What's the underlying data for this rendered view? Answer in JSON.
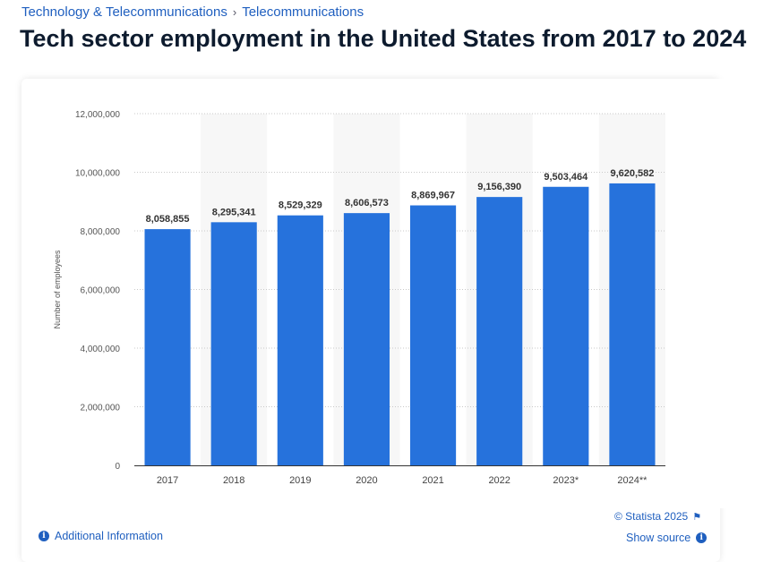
{
  "breadcrumb": {
    "items": [
      "Technology & Telecommunications",
      "Telecommunications"
    ],
    "separator": "›"
  },
  "page_title": "Tech sector employment in the United States from 2017 to 2024",
  "footer": {
    "additional_info": "Additional Information",
    "credit": "© Statista 2025",
    "show_source": "Show source"
  },
  "icons": {
    "info": "info-icon",
    "flag": "flag-icon"
  },
  "colors": {
    "bar": "#2672dc",
    "link": "#1f5fbf",
    "title": "#0d1b2e",
    "band": "#f7f7f7"
  },
  "chart_data": {
    "type": "bar",
    "categories": [
      "2017",
      "2018",
      "2019",
      "2020",
      "2021",
      "2022",
      "2023*",
      "2024**"
    ],
    "values": [
      8058855,
      8295341,
      8529329,
      8606573,
      8869967,
      9156390,
      9503464,
      9620582
    ],
    "value_labels": [
      "8,058,855",
      "8,295,341",
      "8,529,329",
      "8,606,573",
      "8,869,967",
      "9,156,390",
      "9,503,464",
      "9,620,582"
    ],
    "ylabel": "Number of employees",
    "ylim": [
      0,
      12000000
    ],
    "yticks": [
      0,
      2000000,
      4000000,
      6000000,
      8000000,
      10000000,
      12000000
    ],
    "ytick_labels": [
      "0",
      "2,000,000",
      "4,000,000",
      "6,000,000",
      "8,000,000",
      "10,000,000",
      "12,000,000"
    ],
    "grid": true
  }
}
